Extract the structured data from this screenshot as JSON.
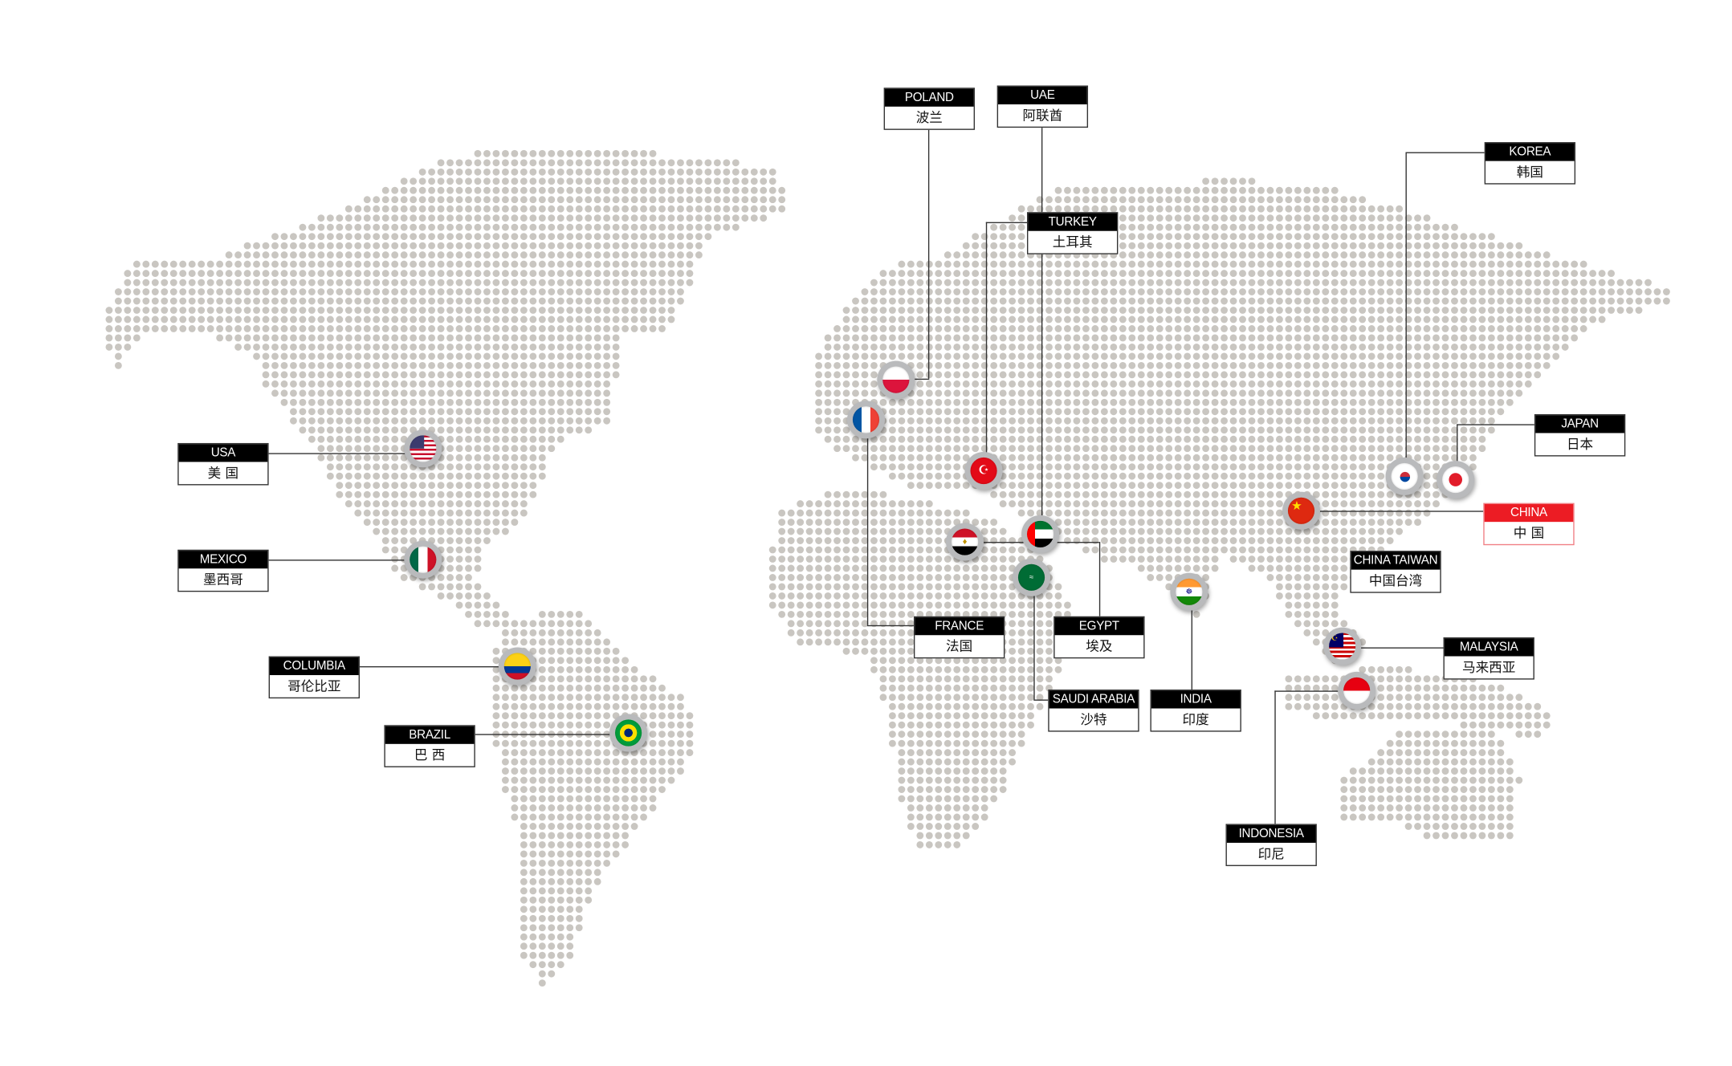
{
  "map": {
    "dot_color": "#c9c6c1",
    "line_color": "#333333",
    "highlight_color": "#ec1c24"
  },
  "locations": {
    "usa": {
      "en": "USA",
      "zh": "美 国",
      "flag": "usa-flag-icon"
    },
    "mexico": {
      "en": "MEXICO",
      "zh": "墨西哥",
      "flag": "mexico-flag-icon"
    },
    "columbia": {
      "en": "COLUMBIA",
      "zh": "哥伦比亚",
      "flag": "colombia-flag-icon"
    },
    "brazil": {
      "en": "BRAZIL",
      "zh": "巴 西",
      "flag": "brazil-flag-icon"
    },
    "poland": {
      "en": "POLAND",
      "zh": "波兰",
      "flag": "poland-flag-icon"
    },
    "uae": {
      "en": "UAE",
      "zh": "阿联酋",
      "flag": "uae-flag-icon"
    },
    "turkey": {
      "en": "TURKEY",
      "zh": "土耳其",
      "flag": "turkey-flag-icon",
      "glyph": "☪"
    },
    "korea": {
      "en": "KOREA",
      "zh": "韩国",
      "flag": "korea-flag-icon"
    },
    "japan": {
      "en": "JAPAN",
      "zh": "日本",
      "flag": "japan-flag-icon"
    },
    "china": {
      "en": "CHINA",
      "zh": "中 国",
      "flag": "china-flag-icon",
      "glyph": "★",
      "highlighted": true
    },
    "china_taiwan": {
      "en": "CHINA TAIWAN",
      "zh": "中国台湾"
    },
    "malaysia": {
      "en": "MALAYSIA",
      "zh": "马来西亚",
      "flag": "malaysia-flag-icon",
      "glyph": "☪"
    },
    "indonesia": {
      "en": "INDONESIA",
      "zh": "印尼",
      "flag": "indonesia-flag-icon"
    },
    "india": {
      "en": "INDIA",
      "zh": "印度",
      "flag": "india-flag-icon",
      "glyph": "☸"
    },
    "egypt": {
      "en": "EGYPT",
      "zh": "埃及",
      "flag": "egypt-flag-icon",
      "glyph": "♦"
    },
    "saudi_arabia": {
      "en": "SAUDI ARABIA",
      "zh": "沙特",
      "flag": "saudi-flag-icon",
      "glyph": "≈"
    },
    "france": {
      "en": "FRANCE",
      "zh": "法国",
      "flag": "france-flag-icon"
    }
  }
}
